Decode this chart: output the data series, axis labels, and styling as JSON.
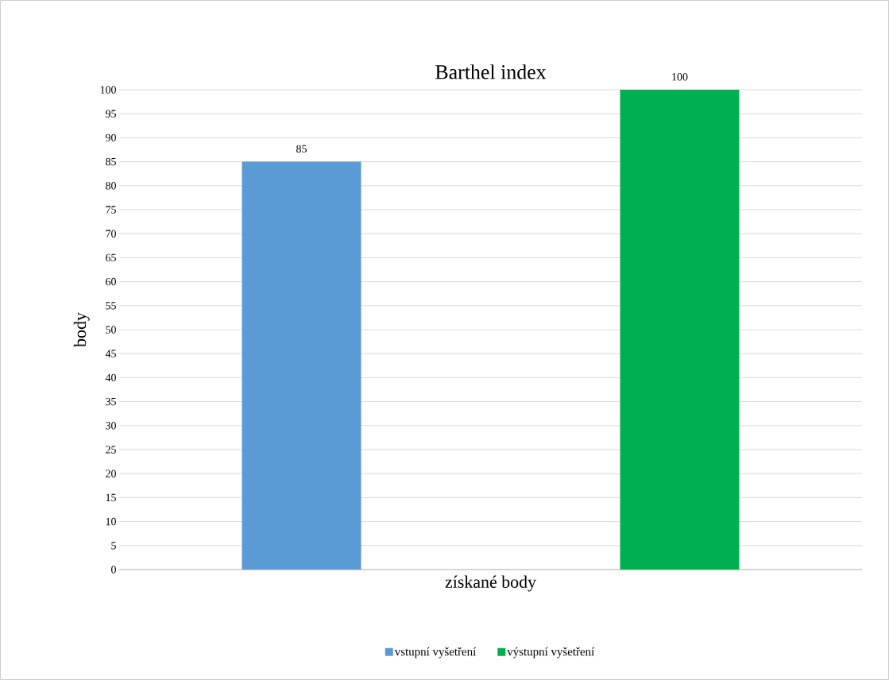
{
  "chart_data": {
    "type": "bar",
    "title": "Barthel index",
    "xlabel": "získané body",
    "ylabel": "body",
    "categories": [
      null
    ],
    "series": [
      {
        "name": "vstupní vyšetření",
        "color": "#5b9bd5",
        "values": [
          85
        ]
      },
      {
        "name": "výstupní vyšetření",
        "color": "#00b050",
        "values": [
          100
        ]
      }
    ],
    "ylim": [
      0,
      100
    ],
    "yticks": [
      0,
      5,
      10,
      15,
      20,
      25,
      30,
      35,
      40,
      45,
      50,
      55,
      60,
      65,
      70,
      75,
      80,
      85,
      90,
      95,
      100
    ],
    "grid": "y",
    "legend": "bottom",
    "data_labels": true
  }
}
